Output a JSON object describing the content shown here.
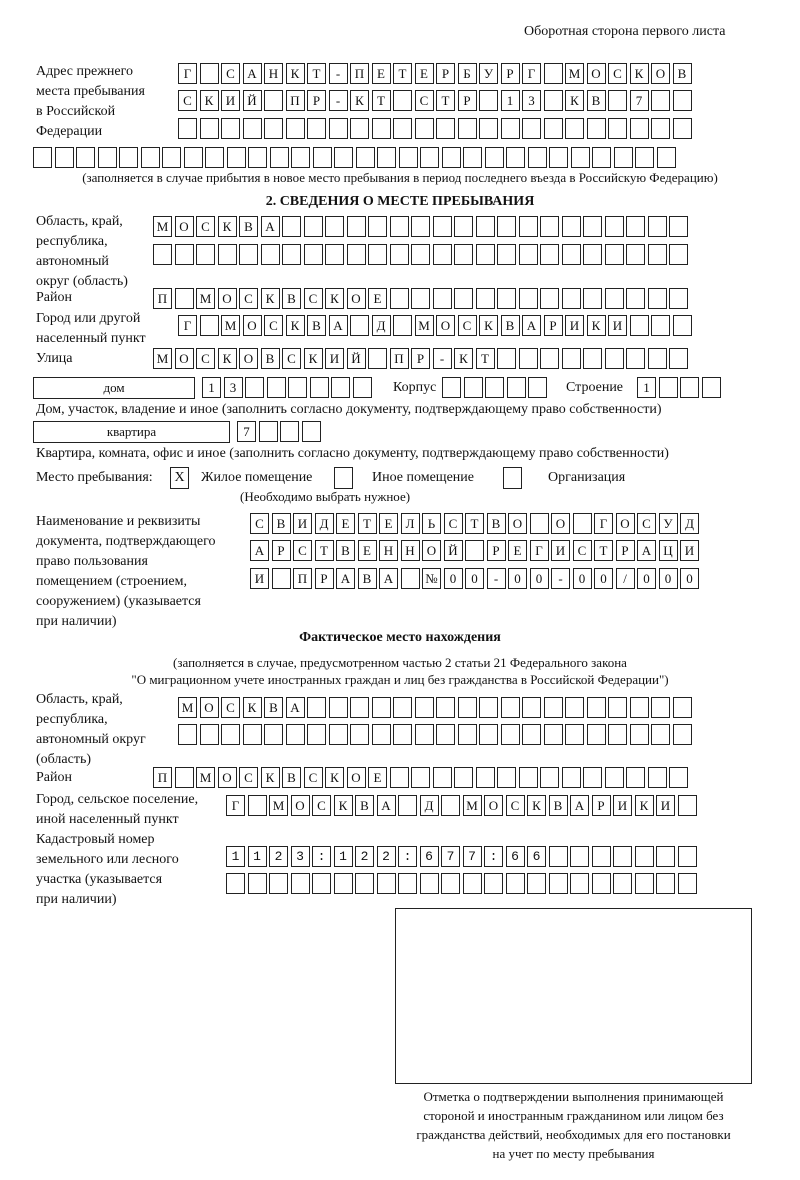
{
  "header": "Оборотная сторона первого листа",
  "prev_address": {
    "label": [
      "Адрес прежнего",
      "места пребывания",
      "в Российской",
      "Федерации"
    ],
    "rows": [
      "Г САНКТ-ПЕТЕРБУРГ МОСКОВ",
      "СКИЙ ПР-КТ СТР 13 КВ 7  ",
      "",
      ""
    ],
    "note": "(заполняется в случае прибытия в новое место пребывания в период последнего въезда в Российскую Федерацию)"
  },
  "section2": {
    "title": "2. СВЕДЕНИЯ О МЕСТЕ ПРЕБЫВАНИЯ",
    "region_label": [
      "Область, край,",
      "республика,",
      "автономный",
      "округ (область)"
    ],
    "region_rows": [
      "МОСКВА",
      ""
    ],
    "district_label": "Район",
    "district": "П МОСКВСКОЕ",
    "city_label": [
      "Город или другой",
      "населенный пункт"
    ],
    "city": "Г МОСКВА Д МОСКВАРИКИ",
    "street_label": "Улица",
    "street": "МОСКОВСКИЙ ПР-КТ",
    "house_type": "дом",
    "house": "13",
    "korpus_label": "Корпус",
    "korpus": "",
    "building_label": "Строение",
    "building": "1",
    "house_note": "Дом, участок, владение и иное (заполнить согласно документу, подтверждающему право собственности)",
    "flat_type": "квартира",
    "flat": "7",
    "flat_note": "Квартира, комната, офис и иное (заполнить согласно документу, подтверждающему право собственности)",
    "stay_label": "Место пребывания:",
    "stay_options": [
      {
        "label": "Жилое помещение",
        "mark": "X"
      },
      {
        "label": "Иное помещение",
        "mark": ""
      },
      {
        "label": "Организация",
        "mark": ""
      }
    ],
    "stay_note": "(Необходимо выбрать нужное)",
    "doc_label": [
      "Наименование и реквизиты",
      "документа, подтверждающего",
      "право пользования",
      "помещением (строением,",
      "сооружением) (указывается",
      "при наличии)"
    ],
    "doc_rows": [
      "СВИДЕТЕЛЬСТВО О ГОСУД",
      "АРСТВЕННОЙ РЕГИСТРАЦИ",
      "И ПРАВА №00-00-00/000"
    ]
  },
  "actual": {
    "title": "Фактическое место нахождения",
    "note": [
      "(заполняется в случае, предусмотренном частью 2 статьи 21 Федерального закона",
      "\"О миграционном учете иностранных граждан и лиц без гражданства в Российской Федерации\")"
    ],
    "region_label": [
      "Область, край,",
      "республика,",
      "автономный округ",
      "(область)"
    ],
    "region_rows": [
      "МОСКВА",
      ""
    ],
    "district_label": "Район",
    "district": "П МОСКВСКОЕ",
    "city_label": [
      "Город, сельское поселение,",
      "иной населенный пункт"
    ],
    "city": "Г МОСКВА Д МОСКВАРИКИ",
    "cadastre_label": [
      "Кадастровый номер",
      "земельного или лесного",
      "участка (указывается",
      "при наличии)"
    ],
    "cadastre_rows": [
      "1123:122:677:66",
      ""
    ]
  },
  "stamp_caption": [
    "Отметка о подтверждении выполнения принимающей",
    "стороной и иностранным гражданином или лицом без",
    "гражданства действий, необходимых для его постановки",
    "на учет по месту пребывания"
  ]
}
